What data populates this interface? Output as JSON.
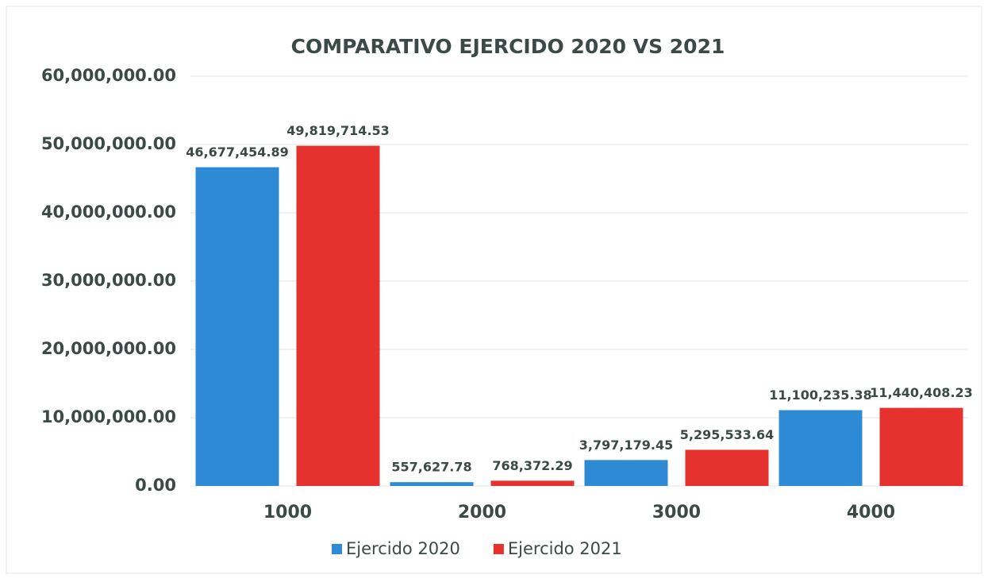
{
  "chart_data": {
    "type": "bar",
    "title": "COMPARATIVO EJERCIDO 2020 VS 2021",
    "categories": [
      "1000",
      "2000",
      "3000",
      "4000"
    ],
    "series": [
      {
        "name": "Ejercido 2020",
        "color": "#2f8ad6",
        "values": [
          46677454.89,
          557627.78,
          3797179.45,
          11100235.38
        ],
        "value_labels": [
          "46,677,454.89",
          "557,627.78",
          "3,797,179.45",
          "11,100,235.38"
        ]
      },
      {
        "name": "Ejercido 2021",
        "color": "#e5322f",
        "values": [
          49819714.53,
          768372.29,
          5295533.64,
          11440408.23
        ],
        "value_labels": [
          "49,819,714.53",
          "768,372.29",
          "5,295,533.64",
          "11,440,408.23"
        ]
      }
    ],
    "ylim": [
      0,
      60000000
    ],
    "yticks": [
      {
        "value": 0,
        "label": "0.00"
      },
      {
        "value": 10000000,
        "label": "10,000,000.00"
      },
      {
        "value": 20000000,
        "label": "20,000,000.00"
      },
      {
        "value": 30000000,
        "label": "30,000,000.00"
      },
      {
        "value": 40000000,
        "label": "40,000,000.00"
      },
      {
        "value": 50000000,
        "label": "50,000,000.00"
      },
      {
        "value": 60000000,
        "label": "60,000,000.00"
      }
    ],
    "grid": true,
    "legend": "bottom"
  }
}
